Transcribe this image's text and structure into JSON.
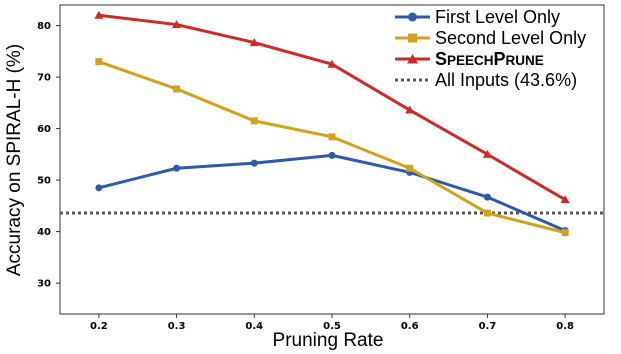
{
  "chart_data": {
    "type": "line",
    "title": "",
    "xlabel": "Pruning Rate",
    "ylabel": "Accuracy on SPIRAL-H (%)",
    "xlim": [
      0.15,
      0.85
    ],
    "ylim": [
      24,
      84
    ],
    "x": [
      0.2,
      0.3,
      0.4,
      0.5,
      0.6,
      0.7,
      0.8
    ],
    "x_tick_labels": [
      "0.2",
      "0.3",
      "0.4",
      "0.5",
      "0.6",
      "0.7",
      "0.8"
    ],
    "y_ticks": [
      30,
      40,
      50,
      60,
      70,
      80
    ],
    "y_tick_labels": [
      "30",
      "40",
      "50",
      "60",
      "70",
      "80"
    ],
    "grid": false,
    "legend_position": "top-right",
    "series": [
      {
        "name": "First Level Only",
        "color": "#2E5AA8",
        "marker": "circle",
        "values": [
          48.5,
          52.3,
          53.3,
          54.8,
          51.5,
          46.7,
          40.2
        ]
      },
      {
        "name": "Second Level Only",
        "color": "#D2A21C",
        "marker": "square",
        "values": [
          73.0,
          67.7,
          61.5,
          58.4,
          52.3,
          43.6,
          39.8
        ]
      },
      {
        "name": "SpeechPrune",
        "color": "#CC2A25",
        "marker": "triangle",
        "values": [
          82.0,
          80.2,
          76.7,
          72.5,
          63.6,
          55.0,
          46.2
        ]
      }
    ],
    "reference_lines": [
      {
        "name": "All Inputs (43.6%)",
        "y": 43.6,
        "color": "#555555",
        "style": "dotted"
      }
    ]
  }
}
